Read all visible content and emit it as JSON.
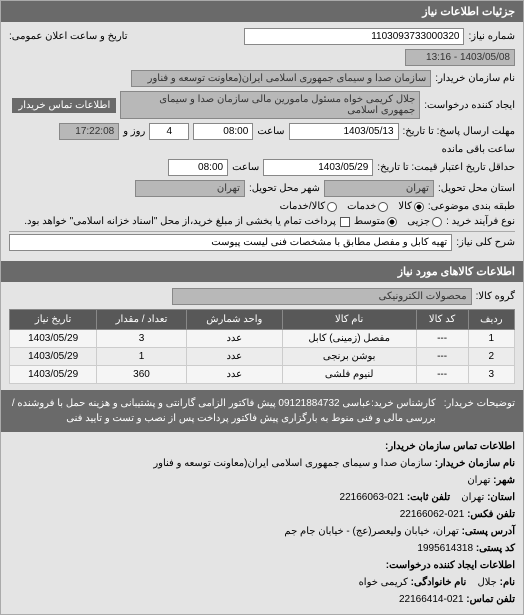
{
  "headers": {
    "details": "جزئیات اطلاعات نیاز",
    "items": "اطلاعات کالاهای مورد نیاز",
    "contact": "اطلاعات تماس سازمان خریدار:"
  },
  "labels": {
    "reqNumber": "شماره نیاز:",
    "announceDateTime": "تاریخ و ساعت اعلان عمومی:",
    "buyerOrg": "نام سازمان خریدار:",
    "requester": "ایجاد کننده درخواست:",
    "contactBtn": "اطلاعات تماس خریدار",
    "replyDeadline": "مهلت ارسال پاسخ: تا تاریخ:",
    "atLeast": "حداقل تاریخ اعتبار قیمت: تا تاریخ:",
    "deliveryProvince": "استان محل تحویل:",
    "deliveryCity": "شهر محل تحویل:",
    "packaging": "طبقه بندی موضوعی:",
    "processType": "نوع فرآیند خرید :",
    "processNote": "پرداخت تمام یا بخشی از مبلغ خرید،از محل \"اسناد خزانه اسلامی\" خواهد بود.",
    "needTitle": "شرح کلی نیاز:",
    "goodsGroup": "گروه کالا:",
    "saat": "ساعت",
    "rooz": "روز و",
    "remaining": "ساعت باقی مانده",
    "purchaseDesc": "توضیحات خریدار:",
    "radios": {
      "kala": "کالا",
      "khadamat": "خدمات",
      "kalaKhadamat": "کالا/خدمات",
      "jozei": "جزیی",
      "motavasset": "متوسط"
    }
  },
  "values": {
    "reqNumber": "1103093733000320",
    "announceDateTime": "1403/05/08 - 13:16",
    "buyerOrg": "سازمان صدا و سیمای جمهوری اسلامی ایران(معاونت توسعه و فناور",
    "requester": "جلال کریمی خواه مسئول مامورین مالی  سازمان صدا و سیمای جمهوری اسلامی",
    "replyDate": "1403/05/13",
    "replyTime": "08:00",
    "remainDays": "4",
    "remainTime": "17:22:08",
    "validDate": "1403/05/29",
    "validTime": "08:00",
    "province": "تهران",
    "city": "تهران",
    "needTitle": "تهیه کابل و مفصل مطابق با مشخصات فنی لیست پیوست",
    "goodsGroup": "محصولات الکترونیکی",
    "purchaseDesc": "کارشناس خرید:عباسی 09121884732 پیش فاکتور الزامی گارانتی و پشتیبانی و هزینه حمل با فروشنده / بررسی مالی و فنی منوط به بارگزاری پیش فاکتور پرداخت پس از نصب و تست و تایید فنی"
  },
  "table": {
    "columns": [
      "ردیف",
      "کد کالا",
      "نام کالا",
      "واحد شمارش",
      "تعداد / مقدار",
      "تاریخ نیاز"
    ],
    "rows": [
      [
        "1",
        "---",
        "مفصل (زمینی) کابل",
        "عدد",
        "3",
        "1403/05/29"
      ],
      [
        "2",
        "---",
        "بوشن برنجی",
        "عدد",
        "1",
        "1403/05/29"
      ],
      [
        "3",
        "---",
        "لنیوم فلشی",
        "عدد",
        "360",
        "1403/05/29"
      ]
    ]
  },
  "contact": {
    "orgLabel": "نام سازمان خریدار:",
    "org": "سازمان صدا و سیمای جمهوری اسلامی ایران(معاونت توسعه و فناور",
    "cityLabel": "شهر:",
    "city": "تهران",
    "provinceLabel": "استان:",
    "province": "تهران",
    "phoneLabel": "تلفن ثابت:",
    "phone": "021-22166063",
    "faxLabel": "تلفن فکس:",
    "fax": "021-22166062",
    "addressLabel": "آدرس پستی:",
    "address": "تهران، خیابان ولیعصر(عج) - خیابان جام جم",
    "postalLabel": "کد پستی:",
    "postal": "1995614318",
    "requesterHeader": "اطلاعات ایجاد کننده درخواست:",
    "nameLabel": "نام:",
    "name": "جلال",
    "familyLabel": "نام خانوادگی:",
    "family": "کریمی خواه",
    "contactPhoneLabel": "تلفن تماس:",
    "contactPhone": "021-22166414"
  }
}
